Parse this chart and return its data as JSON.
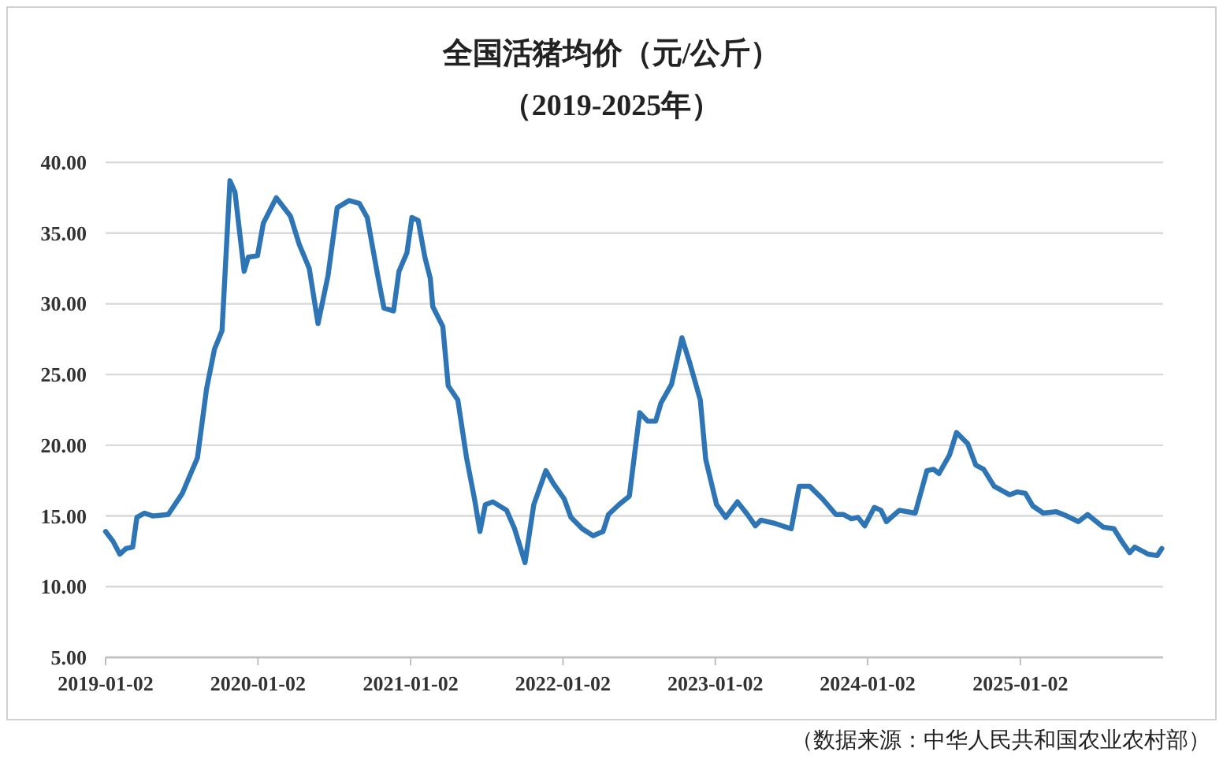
{
  "chart_data": {
    "type": "line",
    "title": "全国活猪均价（元/公斤）",
    "subtitle": "（2019-2025年）",
    "annotations": [
      "（数据来源：中华人民共和国农业农村部）"
    ],
    "x": [
      "2019-01-02",
      "2019-01-20",
      "2019-02-05",
      "2019-02-20",
      "2019-03-08",
      "2019-03-18",
      "2019-04-05",
      "2019-04-25",
      "2019-06-01",
      "2019-07-05",
      "2019-07-25",
      "2019-08-10",
      "2019-09-01",
      "2019-09-20",
      "2019-10-08",
      "2019-10-27",
      "2019-11-08",
      "2019-11-30",
      "2019-12-10",
      "2020-01-01",
      "2020-01-15",
      "2020-02-15",
      "2020-03-20",
      "2020-04-10",
      "2020-05-04",
      "2020-05-25",
      "2020-06-18",
      "2020-07-10",
      "2020-08-07",
      "2020-09-01",
      "2020-09-20",
      "2020-10-15",
      "2020-10-30",
      "2020-11-22",
      "2020-12-05",
      "2020-12-24",
      "2021-01-05",
      "2021-01-20",
      "2021-02-05",
      "2021-02-18",
      "2021-02-24",
      "2021-03-20",
      "2021-04-02",
      "2021-04-25",
      "2021-05-16",
      "2021-06-04",
      "2021-06-17",
      "2021-06-30",
      "2021-07-18",
      "2021-08-20",
      "2021-09-08",
      "2021-10-03",
      "2021-10-24",
      "2021-11-22",
      "2021-12-10",
      "2022-01-05",
      "2022-01-21",
      "2022-02-17",
      "2022-03-15",
      "2022-04-08",
      "2022-04-21",
      "2022-05-16",
      "2022-06-10",
      "2022-07-05",
      "2022-07-24",
      "2022-08-12",
      "2022-08-25",
      "2022-09-19",
      "2022-10-14",
      "2022-11-02",
      "2022-11-27",
      "2022-12-10",
      "2023-01-05",
      "2023-01-27",
      "2023-02-24",
      "2023-03-20",
      "2023-04-08",
      "2023-04-21",
      "2023-05-22",
      "2023-06-22",
      "2023-07-03",
      "2023-07-22",
      "2023-08-16",
      "2023-09-16",
      "2023-10-18",
      "2023-11-05",
      "2023-11-24",
      "2023-12-10",
      "2023-12-26",
      "2024-01-18",
      "2024-02-03",
      "2024-02-16",
      "2024-03-18",
      "2024-04-25",
      "2024-05-23",
      "2024-06-08",
      "2024-06-21",
      "2024-07-16",
      "2024-08-02",
      "2024-08-29",
      "2024-09-17",
      "2024-10-06",
      "2024-10-31",
      "2024-12-07",
      "2024-12-26",
      "2025-01-14",
      "2025-02-01",
      "2025-02-26",
      "2025-03-29",
      "2025-04-23",
      "2025-05-21",
      "2025-06-12",
      "2025-07-20",
      "2025-08-14",
      "2025-09-02",
      "2025-09-21",
      "2025-10-03",
      "2025-11-04",
      "2025-11-26",
      "2025-12-07"
    ],
    "series": [
      {
        "color": "#2e75b6",
        "values": [
          13.9,
          13.2,
          12.3,
          12.7,
          12.8,
          14.9,
          15.2,
          15.0,
          15.1,
          16.6,
          18.0,
          19.1,
          24.0,
          26.8,
          28.1,
          38.7,
          37.9,
          32.3,
          33.3,
          33.4,
          35.7,
          37.5,
          36.2,
          34.2,
          32.5,
          28.6,
          32.0,
          36.8,
          37.3,
          37.1,
          36.1,
          32.0,
          29.7,
          29.5,
          32.3,
          33.6,
          36.1,
          35.9,
          33.3,
          31.8,
          29.8,
          28.4,
          24.2,
          23.2,
          19.1,
          16.2,
          13.9,
          15.8,
          16.0,
          15.4,
          14.1,
          11.7,
          15.8,
          18.2,
          17.3,
          16.2,
          14.9,
          14.1,
          13.6,
          13.9,
          15.1,
          15.8,
          16.4,
          22.3,
          21.7,
          21.7,
          23.0,
          24.3,
          27.6,
          25.8,
          23.2,
          19.0,
          15.8,
          14.9,
          16.0,
          15.1,
          14.3,
          14.7,
          14.5,
          14.2,
          14.1,
          17.1,
          17.1,
          16.2,
          15.1,
          15.1,
          14.8,
          14.9,
          14.3,
          15.6,
          15.4,
          14.6,
          15.4,
          15.2,
          18.2,
          18.3,
          18.0,
          19.3,
          20.9,
          20.1,
          18.6,
          18.3,
          17.1,
          16.5,
          16.7,
          16.6,
          15.7,
          15.2,
          15.3,
          15.0,
          14.6,
          15.1,
          14.2,
          14.1,
          13.2,
          12.4,
          12.8,
          12.3,
          12.2,
          12.7
        ]
      }
    ],
    "xlim": [
      "2019-01-02",
      "2025-12-10"
    ],
    "xticks": [
      "2019-01-02",
      "2020-01-02",
      "2021-01-02",
      "2022-01-02",
      "2023-01-02",
      "2024-01-02",
      "2025-01-02"
    ],
    "ylim": [
      5,
      40
    ],
    "yticks": [
      {
        "value": 5,
        "label": "5.00"
      },
      {
        "value": 10,
        "label": "10.00"
      },
      {
        "value": 15,
        "label": "15.00"
      },
      {
        "value": 20,
        "label": "20.00"
      },
      {
        "value": 25,
        "label": "25.00"
      },
      {
        "value": 30,
        "label": "30.00"
      },
      {
        "value": 35,
        "label": "35.00"
      },
      {
        "value": 40,
        "label": "40.00"
      }
    ],
    "grid": "y",
    "marker": "none",
    "line_style": "solid"
  }
}
